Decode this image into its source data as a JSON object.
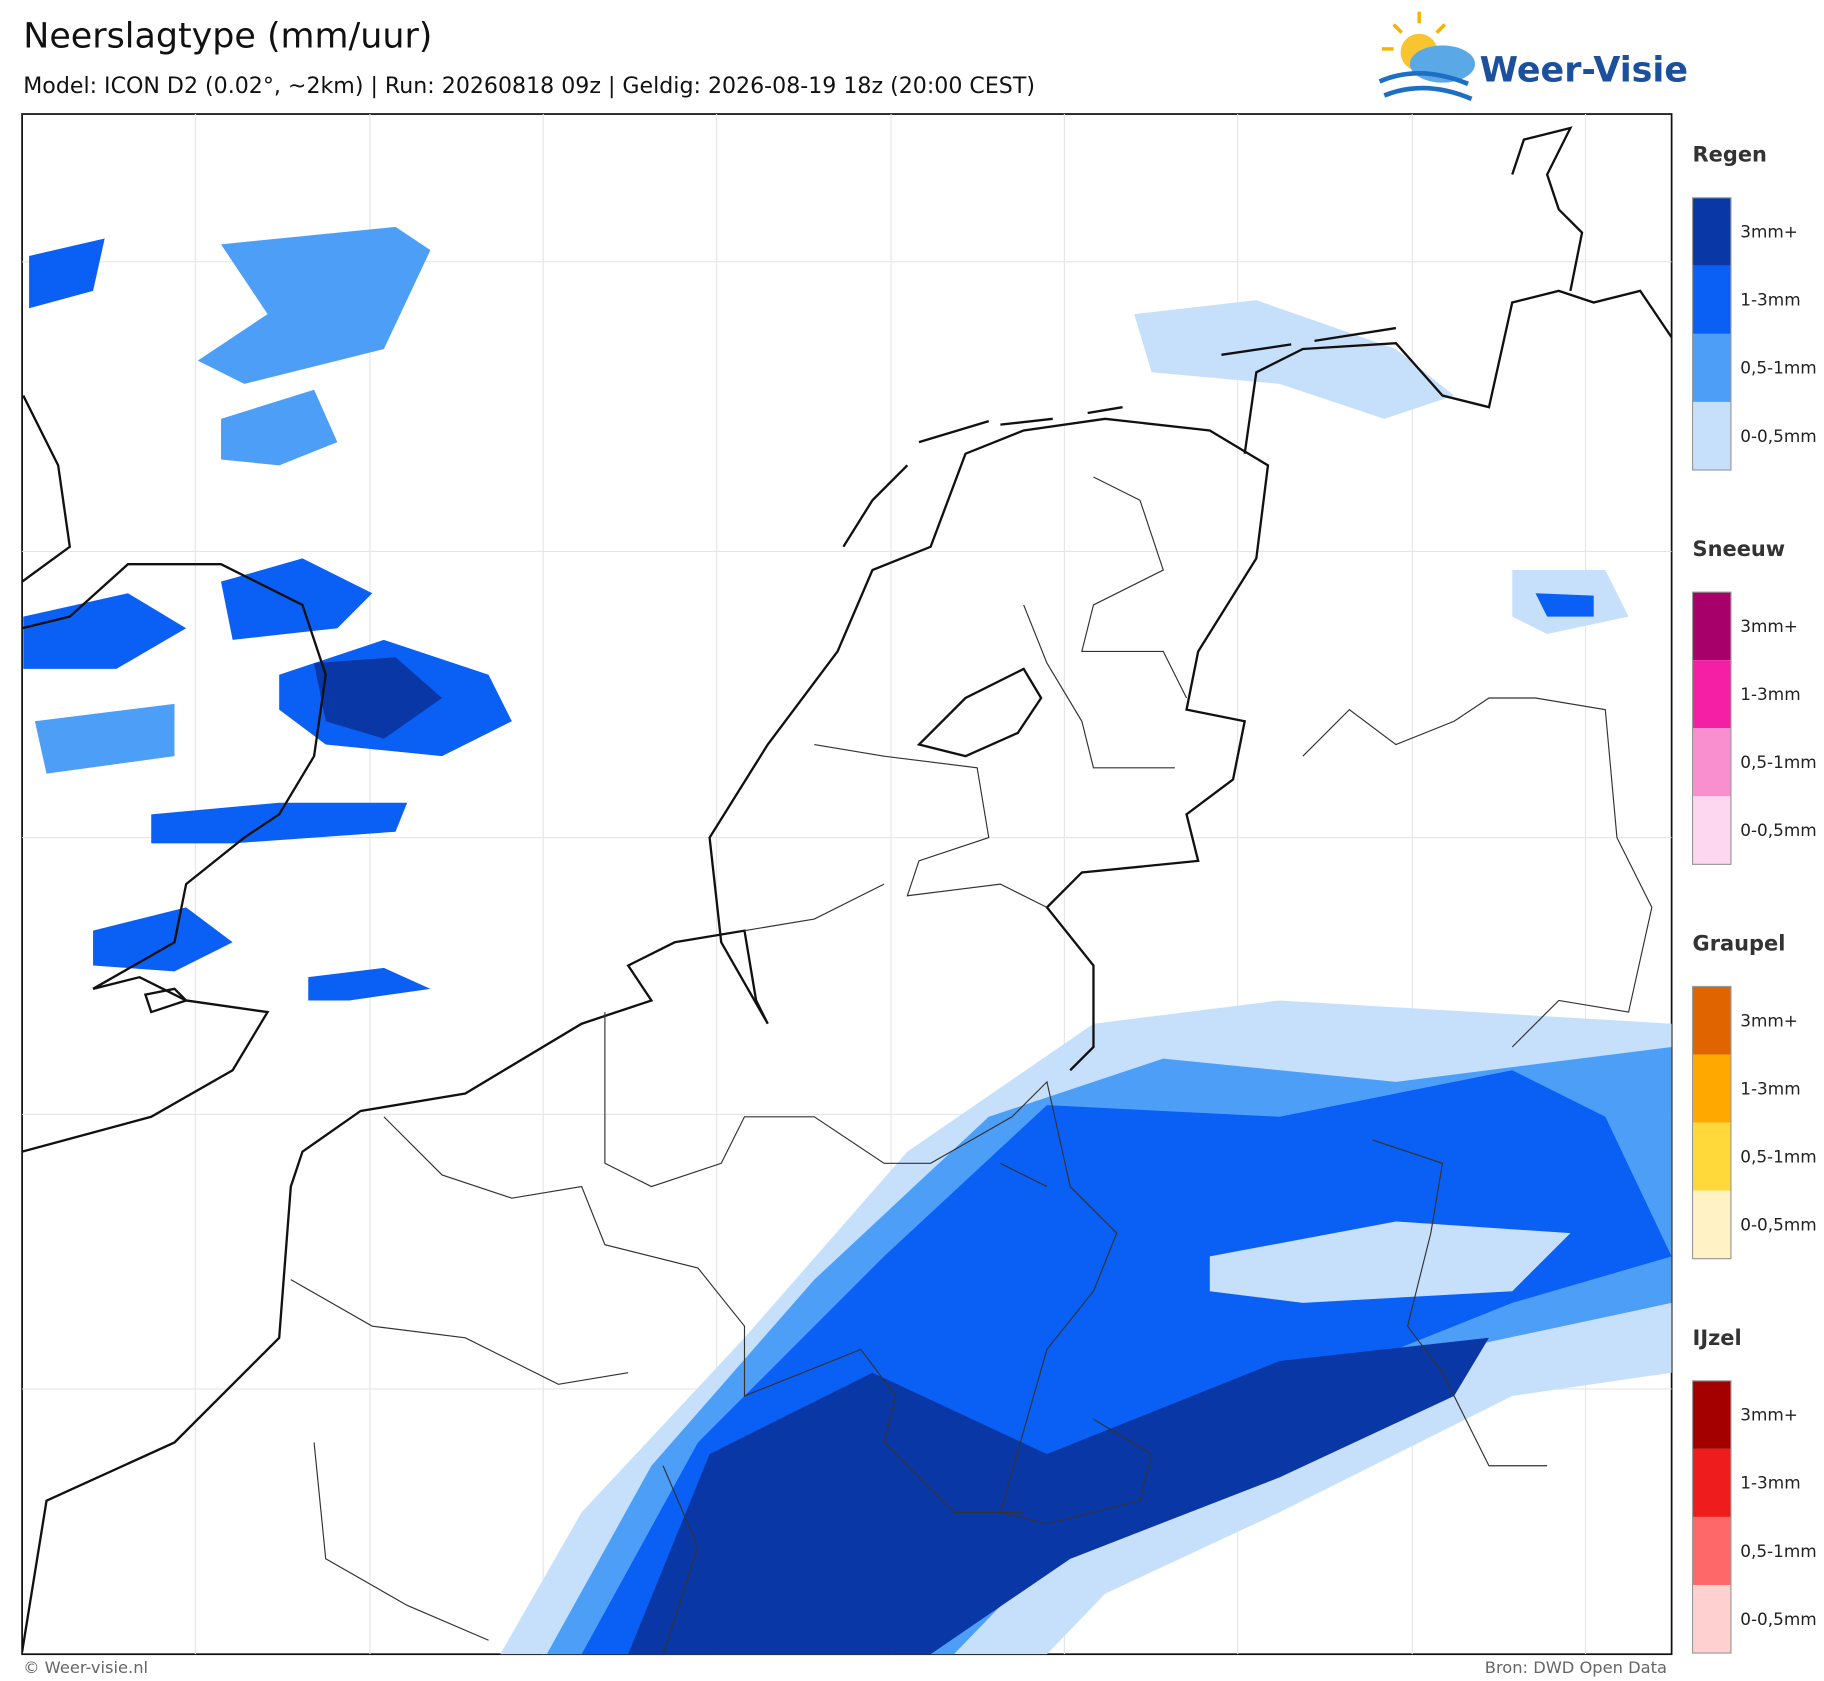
{
  "header": {
    "title": "Neerslagtype (mm/uur)",
    "subtitle": "Model: ICON D2 (0.02°, ~2km)  |  Run: 20260818 09z  |  Geldig: 2026-08-19 18z (20:00 CEST)",
    "logo": "Weer-Visie"
  },
  "legend": {
    "groups": [
      {
        "title": "Regen",
        "items": [
          {
            "label": "3mm+",
            "color": "#0a37a6"
          },
          {
            "label": "1-3mm",
            "color": "#0a5ff5"
          },
          {
            "label": "0,5-1mm",
            "color": "#4d9ef7"
          },
          {
            "label": "0-0,5mm",
            "color": "#c6e0fc"
          }
        ]
      },
      {
        "title": "Sneeuw",
        "items": [
          {
            "label": "3mm+",
            "color": "#a8006a"
          },
          {
            "label": "1-3mm",
            "color": "#f41fa4"
          },
          {
            "label": "0,5-1mm",
            "color": "#fa8fd0"
          },
          {
            "label": "0-0,5mm",
            "color": "#fdd6ef"
          }
        ]
      },
      {
        "title": "Graupel",
        "items": [
          {
            "label": "3mm+",
            "color": "#e06400"
          },
          {
            "label": "1-3mm",
            "color": "#ffa800"
          },
          {
            "label": "0,5-1mm",
            "color": "#ffd83a"
          },
          {
            "label": "0-0,5mm",
            "color": "#fff2c4"
          }
        ]
      },
      {
        "title": "IJzel",
        "items": [
          {
            "label": "3mm+",
            "color": "#a50000"
          },
          {
            "label": "1-3mm",
            "color": "#ee1c1c"
          },
          {
            "label": "0,5-1mm",
            "color": "#ff6868"
          },
          {
            "label": "0-0,5mm",
            "color": "#ffd0d0"
          }
        ]
      }
    ]
  },
  "footer": {
    "left": "© Weer-visie.nl",
    "right": "Bron: DWD Open Data"
  }
}
